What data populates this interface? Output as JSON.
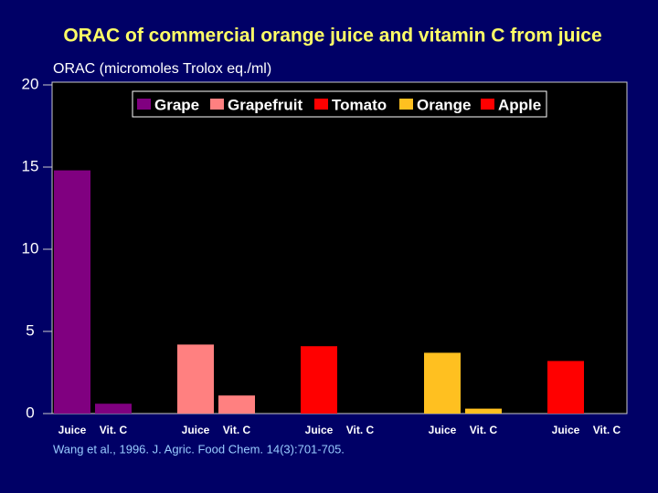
{
  "chart_data": {
    "type": "bar",
    "title": "ORAC of commercial orange juice and vitamin C from juice",
    "y_label": "ORAC (micromoles Trolox eq./ml)",
    "source": "Wang et al., 1996.  J. Agric. Food Chem. 14(3):701-705.",
    "categories": [
      "Juice",
      "Vit. C",
      "Juice",
      "Vit. C",
      "Juice",
      "Vit. C",
      "Juice",
      "Vit. C",
      "Juice",
      "Vit. C"
    ],
    "series": [
      {
        "name": "Grape",
        "color": "#800080",
        "values": [
          14.8,
          0.6,
          null,
          null,
          null,
          null,
          null,
          null,
          null,
          null
        ]
      },
      {
        "name": "Grapefruit",
        "color": "#ff8080",
        "values": [
          null,
          null,
          4.2,
          1.1,
          null,
          null,
          null,
          null,
          null,
          null
        ]
      },
      {
        "name": "Tomato",
        "color": "#ff0000",
        "values": [
          null,
          null,
          null,
          null,
          4.1,
          null,
          null,
          null,
          null,
          null
        ]
      },
      {
        "name": "Orange",
        "color": "#ffc020",
        "values": [
          null,
          null,
          null,
          null,
          null,
          null,
          3.7,
          0.3,
          null,
          null
        ]
      },
      {
        "name": "Apple",
        "color": "#ff0000",
        "values": [
          null,
          null,
          null,
          null,
          null,
          null,
          null,
          null,
          3.2,
          null
        ]
      }
    ],
    "ylim": [
      0,
      20
    ],
    "yticks": [
      0,
      5,
      10,
      15,
      20
    ]
  }
}
